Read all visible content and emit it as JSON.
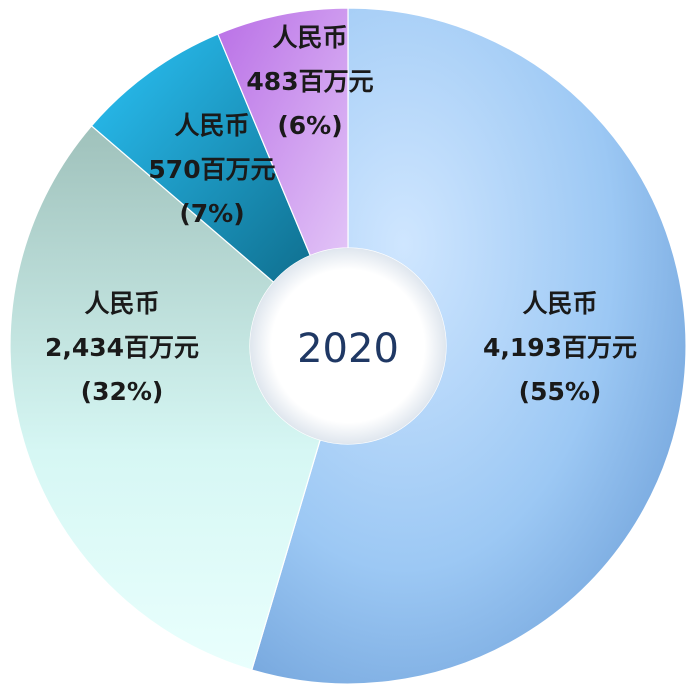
{
  "chart_data": {
    "type": "pie",
    "title": "",
    "center_label": "2020",
    "slices": [
      {
        "line1": "人民币",
        "line2": "4,193百万元",
        "line3": "(55%)",
        "value": 4193,
        "percent": 55,
        "color": "#8fbdf0"
      },
      {
        "line1": "人民币",
        "line2": "2,434百万元",
        "line3": "(32%)",
        "value": 2434,
        "percent": 32,
        "color": "#b9ddd8"
      },
      {
        "line1": "人民币",
        "line2": "570百万元",
        "line3": "(7%)",
        "value": 570,
        "percent": 7,
        "color": "#1cb4ee"
      },
      {
        "line1": "人民币",
        "line2": "483百万元",
        "line3": "(6%)",
        "value": 483,
        "percent": 6,
        "color": "#c68ae8"
      }
    ]
  }
}
